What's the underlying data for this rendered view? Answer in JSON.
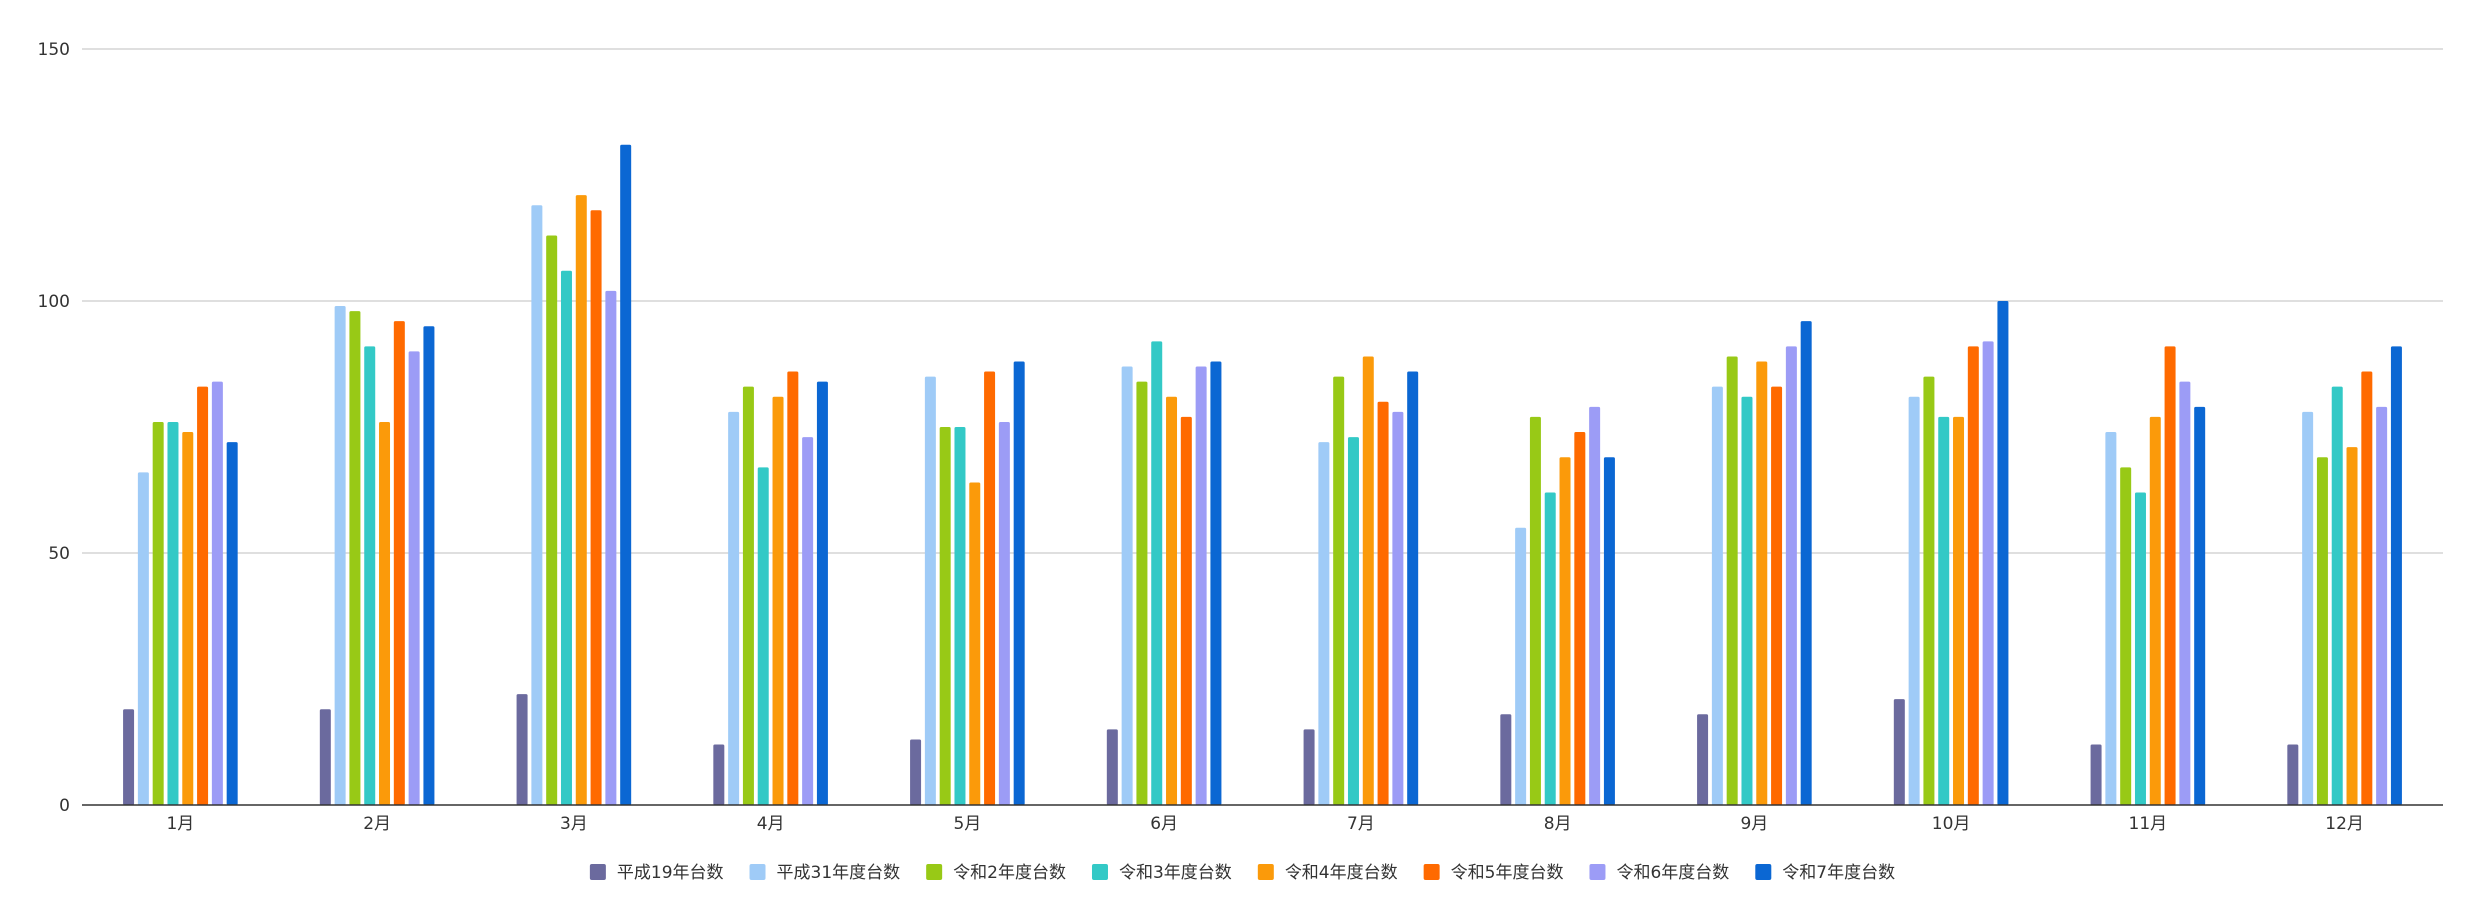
{
  "chart_data": {
    "type": "bar",
    "title": "",
    "xlabel": "",
    "ylabel": "",
    "ylim": [
      0,
      150
    ],
    "yticks": [
      0,
      50,
      100,
      150
    ],
    "grid": true,
    "legend_position": "bottom",
    "categories": [
      "1月",
      "2月",
      "3月",
      "4月",
      "5月",
      "6月",
      "7月",
      "8月",
      "9月",
      "10月",
      "11月",
      "12月"
    ],
    "series": [
      {
        "name": "平成19年台数",
        "color": "#6b6a9e",
        "values": [
          19,
          19,
          22,
          12,
          13,
          15,
          15,
          18,
          18,
          21,
          12,
          12
        ]
      },
      {
        "name": "平成31年度台数",
        "color": "#9fcbf7",
        "values": [
          66,
          99,
          119,
          78,
          85,
          87,
          72,
          55,
          83,
          81,
          74,
          78
        ]
      },
      {
        "name": "令和2年度台数",
        "color": "#98c916",
        "values": [
          76,
          98,
          113,
          83,
          75,
          84,
          85,
          77,
          89,
          85,
          67,
          69
        ]
      },
      {
        "name": "令和3年度台数",
        "color": "#33c9c6",
        "values": [
          76,
          91,
          106,
          67,
          75,
          92,
          73,
          62,
          81,
          77,
          62,
          83
        ]
      },
      {
        "name": "令和4年度台数",
        "color": "#fb9a0a",
        "values": [
          74,
          76,
          121,
          81,
          64,
          81,
          89,
          69,
          88,
          77,
          77,
          71
        ]
      },
      {
        "name": "令和5年度台数",
        "color": "#ff6a00",
        "values": [
          83,
          96,
          118,
          86,
          86,
          77,
          80,
          74,
          83,
          91,
          91,
          86
        ]
      },
      {
        "name": "令和6年度台数",
        "color": "#9c9cf6",
        "values": [
          84,
          90,
          102,
          73,
          76,
          87,
          78,
          79,
          91,
          92,
          84,
          79
        ]
      },
      {
        "name": "令和7年度台数",
        "color": "#0b67d3",
        "values": [
          72,
          95,
          131,
          84,
          88,
          88,
          86,
          69,
          96,
          100,
          79,
          91
        ]
      }
    ]
  }
}
